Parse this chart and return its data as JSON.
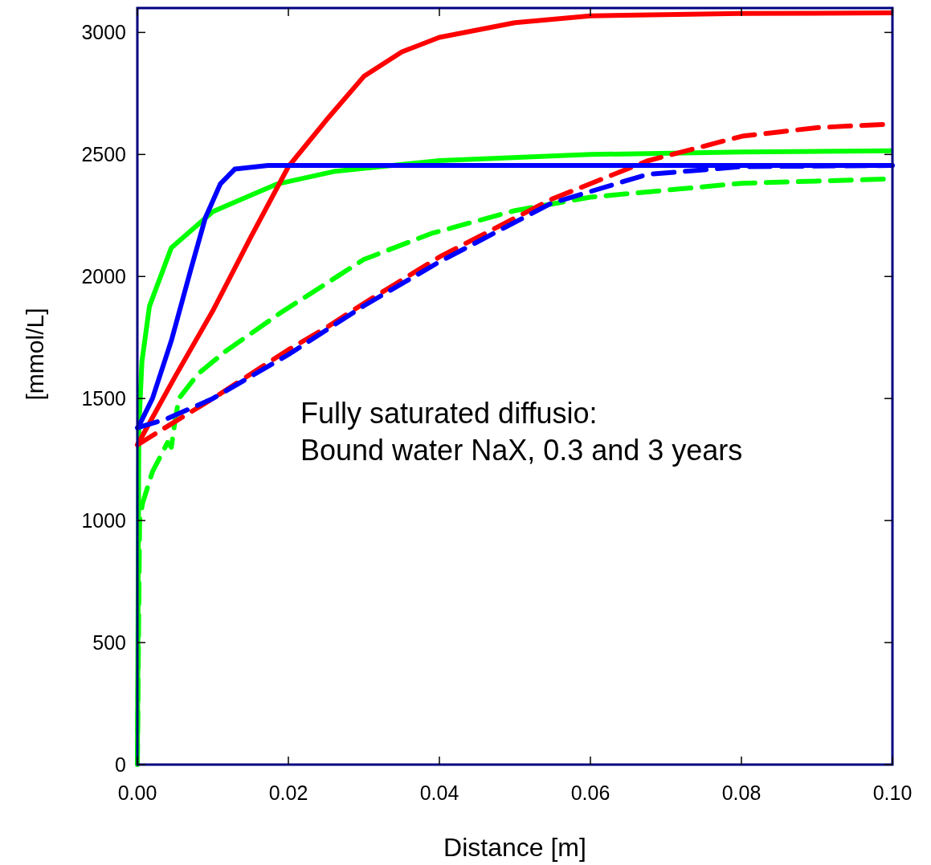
{
  "chart_data": {
    "type": "line",
    "xlabel": "Distance [m]",
    "ylabel": "[mmol/L]",
    "annotations": [
      "Fully saturated diffusio:\nBound water NaX, 0.3 and 3 years"
    ],
    "xlim": [
      0,
      0.1
    ],
    "ylim": [
      0,
      3100
    ],
    "xticks": [
      {
        "value": 0,
        "label": "0.00"
      },
      {
        "value": 0.02,
        "label": "0.02"
      },
      {
        "value": 0.04,
        "label": "0.04"
      },
      {
        "value": 0.06,
        "label": "0.06"
      },
      {
        "value": 0.08,
        "label": "0.08"
      },
      {
        "value": 0.1,
        "label": "0.10"
      }
    ],
    "yticks": [
      0,
      500,
      1000,
      1500,
      2000,
      2500,
      3000
    ],
    "marker": "none",
    "series": [
      {
        "color": "#00ff00",
        "line_style": "solid",
        "x": [
          0,
          0.0002,
          0.0006,
          0.0016,
          0.0045,
          0.01,
          0.0184,
          0.026,
          0.04,
          0.06,
          0.08,
          0.1
        ],
        "values": [
          0,
          1380,
          1650,
          1878,
          2118,
          2266,
          2378,
          2430,
          2475,
          2500,
          2510,
          2515
        ]
      },
      {
        "color": "#00ff00",
        "line_style": "dashed",
        "x": [
          0,
          0.0003,
          0.0007,
          0.002,
          0.004,
          0.0045,
          0.005,
          0.0055,
          0.008,
          0.0117,
          0.019,
          0.03,
          0.039,
          0.05,
          0.06,
          0.08,
          0.1
        ],
        "values": [
          0,
          1000,
          1072,
          1200,
          1320,
          1300,
          1410,
          1500,
          1600,
          1694,
          1852,
          2070,
          2177,
          2270,
          2325,
          2382,
          2400
        ]
      },
      {
        "color": "#ff0000",
        "line_style": "solid",
        "x": [
          0,
          0.005,
          0.01,
          0.015,
          0.02,
          0.025,
          0.03,
          0.035,
          0.04,
          0.05,
          0.06,
          0.08,
          0.1
        ],
        "values": [
          1310,
          1590,
          1860,
          2160,
          2450,
          2640,
          2820,
          2920,
          2980,
          3040,
          3068,
          3078,
          3080
        ]
      },
      {
        "color": "#ff0000",
        "line_style": "dashed",
        "x": [
          0,
          0.0047,
          0.01,
          0.02,
          0.025,
          0.03,
          0.04,
          0.0548,
          0.0675,
          0.0801,
          0.09,
          0.1
        ],
        "values": [
          1310,
          1400,
          1500,
          1700,
          1790,
          1890,
          2080,
          2316,
          2473,
          2575,
          2610,
          2625
        ]
      },
      {
        "color": "#0000ff",
        "line_style": "solid",
        "x": [
          0,
          0.002,
          0.0045,
          0.007,
          0.009,
          0.011,
          0.0129,
          0.0173,
          0.03,
          0.06,
          0.1
        ],
        "values": [
          1375,
          1500,
          1737,
          2020,
          2240,
          2380,
          2440,
          2455,
          2455,
          2455,
          2455
        ]
      },
      {
        "color": "#0000ff",
        "line_style": "dashed",
        "x": [
          0,
          0.004,
          0.01,
          0.02,
          0.03,
          0.04,
          0.0548,
          0.0675,
          0.08,
          0.1
        ],
        "values": [
          1380,
          1418,
          1500,
          1680,
          1880,
          2060,
          2300,
          2418,
          2450,
          2455
        ]
      }
    ]
  }
}
